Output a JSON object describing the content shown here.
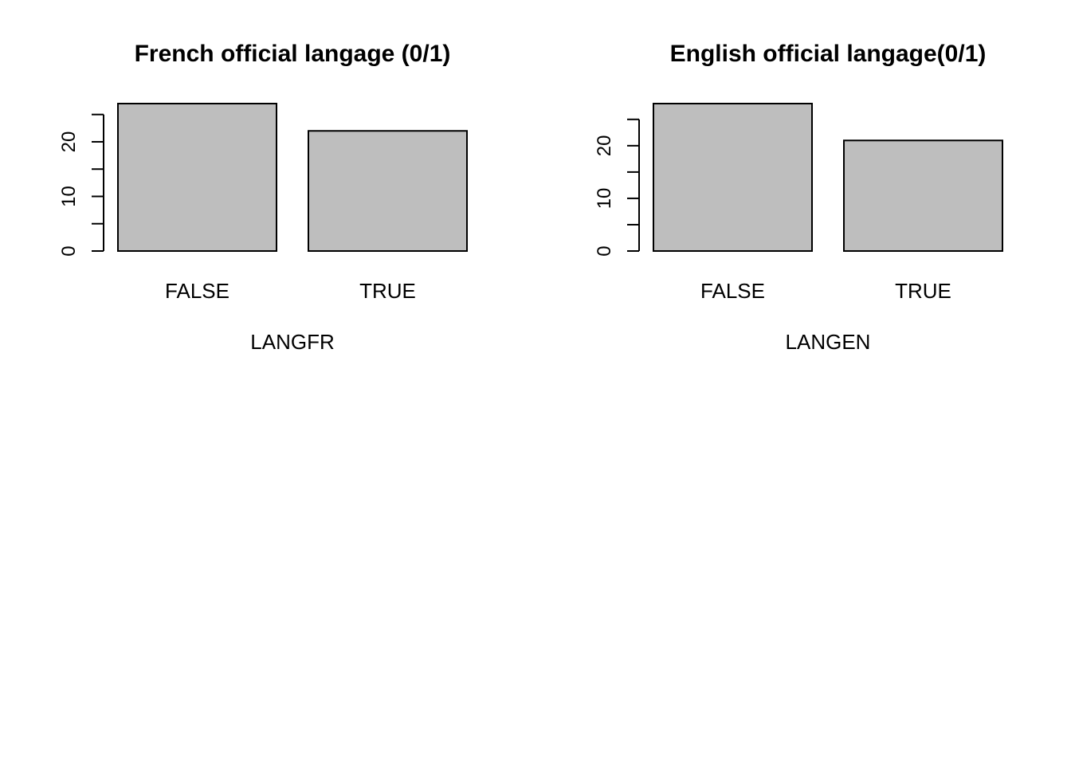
{
  "chart_data": [
    {
      "type": "bar",
      "title": "French official langage (0/1)",
      "xlabel": "LANGFR",
      "ylabel": "",
      "categories": [
        "FALSE",
        "TRUE"
      ],
      "values": [
        27,
        22
      ],
      "yticks": [
        0,
        10,
        20
      ],
      "ylim": [
        0,
        27
      ],
      "bar_color": "#bebebe",
      "grid": false
    },
    {
      "type": "bar",
      "title": "English official langage(0/1)",
      "xlabel": "LANGEN",
      "ylabel": "",
      "categories": [
        "FALSE",
        "TRUE"
      ],
      "values": [
        28,
        21
      ],
      "yticks": [
        0,
        10,
        20
      ],
      "ylim": [
        0,
        28
      ],
      "bar_color": "#bebebe",
      "grid": false
    }
  ]
}
